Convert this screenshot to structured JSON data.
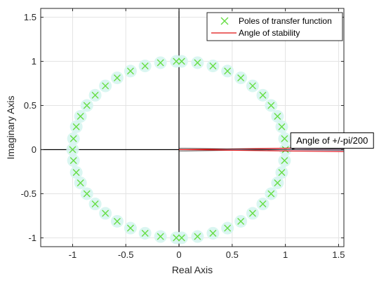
{
  "chart_data": {
    "type": "scatter",
    "title": "",
    "xlabel": "Real Axis",
    "ylabel": "Imaginary Axis",
    "xlim": [
      -1.3,
      1.55
    ],
    "ylim": [
      -1.1,
      1.6
    ],
    "xticks": [
      -1,
      -0.5,
      0,
      0.5,
      1,
      1.5
    ],
    "yticks": [
      -1,
      -0.5,
      0,
      0.5,
      1,
      1.5
    ],
    "xtick_labels": [
      "-1",
      "-0.5",
      "0",
      "0.5",
      "1",
      "1.5"
    ],
    "ytick_labels": [
      "-1",
      "-0.5",
      "0",
      "0.5",
      "1",
      "1.5"
    ],
    "grid": true,
    "legend_position": "top-right",
    "series": [
      {
        "name": "Poles of transfer function",
        "kind": "markers",
        "marker": "x",
        "color": "#66dd44",
        "halo_color": "#d6f5f0",
        "points": [
          [
            0.025,
            1.0
          ],
          [
            0.174,
            0.985
          ],
          [
            0.319,
            0.948
          ],
          [
            0.456,
            0.89
          ],
          [
            0.581,
            0.813
          ],
          [
            0.692,
            0.722
          ],
          [
            0.788,
            0.616
          ],
          [
            0.866,
            0.5
          ],
          [
            0.926,
            0.377
          ],
          [
            0.966,
            0.259
          ],
          [
            0.992,
            0.124
          ],
          [
            1.0,
            0.0
          ],
          [
            0.992,
            -0.124
          ],
          [
            0.966,
            -0.259
          ],
          [
            0.926,
            -0.377
          ],
          [
            0.866,
            -0.5
          ],
          [
            0.788,
            -0.616
          ],
          [
            0.692,
            -0.722
          ],
          [
            0.581,
            -0.813
          ],
          [
            0.456,
            -0.89
          ],
          [
            0.319,
            -0.948
          ],
          [
            0.174,
            -0.985
          ],
          [
            0.025,
            -1.0
          ],
          [
            -0.025,
            1.0
          ],
          [
            -0.174,
            0.985
          ],
          [
            -0.319,
            0.948
          ],
          [
            -0.456,
            0.89
          ],
          [
            -0.581,
            0.813
          ],
          [
            -0.692,
            0.722
          ],
          [
            -0.788,
            0.616
          ],
          [
            -0.866,
            0.5
          ],
          [
            -0.926,
            0.377
          ],
          [
            -0.966,
            0.259
          ],
          [
            -0.992,
            0.124
          ],
          [
            -1.0,
            0.0
          ],
          [
            -0.992,
            -0.124
          ],
          [
            -0.966,
            -0.259
          ],
          [
            -0.926,
            -0.377
          ],
          [
            -0.866,
            -0.5
          ],
          [
            -0.788,
            -0.616
          ],
          [
            -0.692,
            -0.722
          ],
          [
            -0.581,
            -0.813
          ],
          [
            -0.456,
            -0.89
          ],
          [
            -0.319,
            -0.948
          ],
          [
            -0.174,
            -0.985
          ],
          [
            -0.025,
            -1.0
          ]
        ]
      },
      {
        "name": "Angle of stability",
        "kind": "lines",
        "color": "#e01010",
        "angle": "+/-pi/200",
        "lines": [
          [
            [
              0,
              0
            ],
            [
              1.55,
              0.024
            ]
          ],
          [
            [
              0,
              0
            ],
            [
              1.55,
              -0.024
            ]
          ]
        ]
      }
    ],
    "annotations": [
      {
        "text": "Angle of +/-pi/200",
        "box_anchor": [
          1.05,
          0.19
        ],
        "arrow_to": [
          1.06,
          0.0
        ]
      }
    ]
  }
}
